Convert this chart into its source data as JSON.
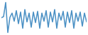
{
  "values": [
    0.2,
    0.5,
    4.5,
    -4.0,
    0.3,
    1.5,
    -0.8,
    2.2,
    -1.5,
    1.8,
    -2.8,
    2.5,
    -1.0,
    1.5,
    -2.5,
    1.8,
    -1.2,
    2.0,
    -2.8,
    1.5,
    -0.8,
    2.2,
    -2.5,
    1.8,
    -1.0,
    2.5,
    -2.8,
    1.5,
    -0.5,
    2.0,
    -2.5,
    1.8,
    -1.2,
    2.2,
    -2.8,
    1.5,
    -0.8,
    1.8,
    -2.2,
    1.5,
    -1.0
  ],
  "line_color": "#4a90c4",
  "background_color": "#ffffff",
  "linewidth": 1.1
}
